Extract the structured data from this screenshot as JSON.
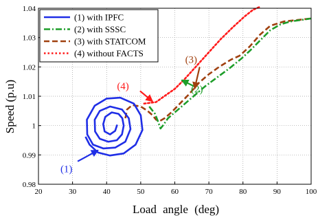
{
  "chart_data": {
    "type": "line",
    "xlabel": "Load angle (deg)",
    "ylabel": "Speed (p.u)",
    "xlim": [
      20,
      100
    ],
    "ylim": [
      0.98,
      1.04
    ],
    "xticks": [
      "20",
      "30",
      "40",
      "50",
      "60",
      "70",
      "80",
      "90",
      "100"
    ],
    "yticks": [
      "0.98",
      "0.99",
      "1",
      "1.01",
      "1.02",
      "1.03",
      "1.04"
    ],
    "grid": true,
    "legend_position": "top-left",
    "colors": {
      "ipfc": "#1f2ee6",
      "sssc": "#1e9e2a",
      "statcom": "#a0400f",
      "without": "#ff1a1a"
    },
    "series": [
      {
        "name": "(1) with IPFC",
        "key": "ipfc",
        "style": "solid",
        "points": [
          [
            33.8,
            0.9962
          ],
          [
            35.0,
            0.9935
          ],
          [
            37.5,
            0.9908
          ],
          [
            41.0,
            0.9898
          ],
          [
            45.0,
            0.9905
          ],
          [
            48.5,
            0.9935
          ],
          [
            50.5,
            0.9985
          ],
          [
            50.0,
            1.0035
          ],
          [
            48.0,
            1.0075
          ],
          [
            44.0,
            1.0095
          ],
          [
            40.0,
            1.0092
          ],
          [
            36.5,
            1.0068
          ],
          [
            34.2,
            1.002
          ],
          [
            34.3,
            0.997
          ],
          [
            36.0,
            0.9935
          ],
          [
            39.0,
            0.9922
          ],
          [
            42.5,
            0.9925
          ],
          [
            45.5,
            0.9945
          ],
          [
            47.0,
            0.9988
          ],
          [
            46.5,
            1.0025
          ],
          [
            44.5,
            1.0055
          ],
          [
            41.0,
            1.0065
          ],
          [
            38.0,
            1.005
          ],
          [
            36.5,
            1.002
          ],
          [
            36.6,
            0.998
          ],
          [
            38.0,
            0.9955
          ],
          [
            40.5,
            0.9945
          ],
          [
            43.0,
            0.995
          ],
          [
            44.5,
            0.997
          ],
          [
            45.0,
            1.0
          ],
          [
            44.6,
            1.0025
          ],
          [
            43.5,
            1.004
          ],
          [
            41.5,
            1.0045
          ],
          [
            39.6,
            1.003
          ],
          [
            39.0,
            1.0005
          ],
          [
            39.4,
            0.998
          ],
          [
            41.0,
            0.997
          ],
          [
            42.5,
            0.9982
          ],
          [
            43.1,
            1.0003
          ]
        ]
      },
      {
        "name": "(2) with SSSC",
        "key": "sssc",
        "style": "dashdot",
        "points": [
          [
            52.5,
            1.0065
          ],
          [
            54.2,
            1.004
          ],
          [
            55.2,
            1.001
          ],
          [
            55.8,
            0.999
          ],
          [
            56.5,
            1.0
          ],
          [
            58.0,
            1.0025
          ],
          [
            61.0,
            1.0055
          ],
          [
            65.0,
            1.0095
          ],
          [
            69.0,
            1.0135
          ],
          [
            72.5,
            1.0165
          ],
          [
            76.0,
            1.0195
          ],
          [
            79.5,
            1.0228
          ],
          [
            82.0,
            1.0255
          ],
          [
            85.0,
            1.029
          ],
          [
            88.0,
            1.0325
          ],
          [
            91.0,
            1.0345
          ],
          [
            94.0,
            1.0355
          ],
          [
            97.0,
            1.036
          ],
          [
            100.0,
            1.0365
          ]
        ]
      },
      {
        "name": "(3) with STATCOM",
        "key": "statcom",
        "style": "dashed",
        "points": [
          [
            45.5,
            1.0025
          ],
          [
            46.0,
            1.0055
          ],
          [
            47.5,
            1.007
          ],
          [
            50.0,
            1.0065
          ],
          [
            52.0,
            1.005
          ],
          [
            53.5,
            1.0035
          ],
          [
            54.5,
            1.002
          ],
          [
            55.5,
            1.0015
          ],
          [
            57.0,
            1.0025
          ],
          [
            59.0,
            1.0045
          ],
          [
            61.5,
            1.0075
          ],
          [
            64.0,
            1.0105
          ],
          [
            67.0,
            1.0145
          ],
          [
            70.0,
            1.0175
          ],
          [
            73.0,
            1.02
          ],
          [
            76.5,
            1.0225
          ],
          [
            79.0,
            1.0238
          ],
          [
            82.0,
            1.027
          ],
          [
            85.0,
            1.031
          ],
          [
            88.0,
            1.034
          ],
          [
            92.0,
            1.0355
          ],
          [
            96.0,
            1.036
          ],
          [
            100.0,
            1.0365
          ]
        ]
      },
      {
        "name": "(4) without FACTS",
        "key": "without",
        "style": "dotted",
        "points": [
          [
            51.0,
            1.0075
          ],
          [
            54.5,
            1.008
          ],
          [
            57.5,
            1.0105
          ],
          [
            60.0,
            1.0125
          ],
          [
            63.0,
            1.016
          ],
          [
            66.5,
            1.0205
          ],
          [
            70.0,
            1.025
          ],
          [
            73.5,
            1.0295
          ],
          [
            77.0,
            1.0335
          ],
          [
            80.5,
            1.0372
          ],
          [
            83.0,
            1.0395
          ],
          [
            85.0,
            1.0405
          ]
        ]
      }
    ],
    "annotations": [
      {
        "label": "(1)",
        "key": "ipfc",
        "text_at": [
          28.2,
          0.9853
        ],
        "arrow_from": [
          31.5,
          0.9878
        ],
        "arrow_to": [
          37.5,
          0.9916
        ]
      },
      {
        "label": "(2)",
        "key": "sssc",
        "text_at": [
          66.5,
          1.0125
        ],
        "arrow_from": [
          66.0,
          1.0132
        ],
        "arrow_to": [
          62.0,
          1.0155
        ]
      },
      {
        "label": "(3)",
        "key": "statcom",
        "text_at": [
          64.8,
          1.0225
        ],
        "arrow_from": [
          67.3,
          1.02
        ],
        "arrow_to": [
          65.8,
          1.0125
        ]
      },
      {
        "label": "(4)",
        "key": "without",
        "text_at": [
          44.8,
          1.0135
        ],
        "arrow_from": [
          49.8,
          1.0118
        ],
        "arrow_to": [
          53.5,
          1.0082
        ]
      }
    ]
  }
}
